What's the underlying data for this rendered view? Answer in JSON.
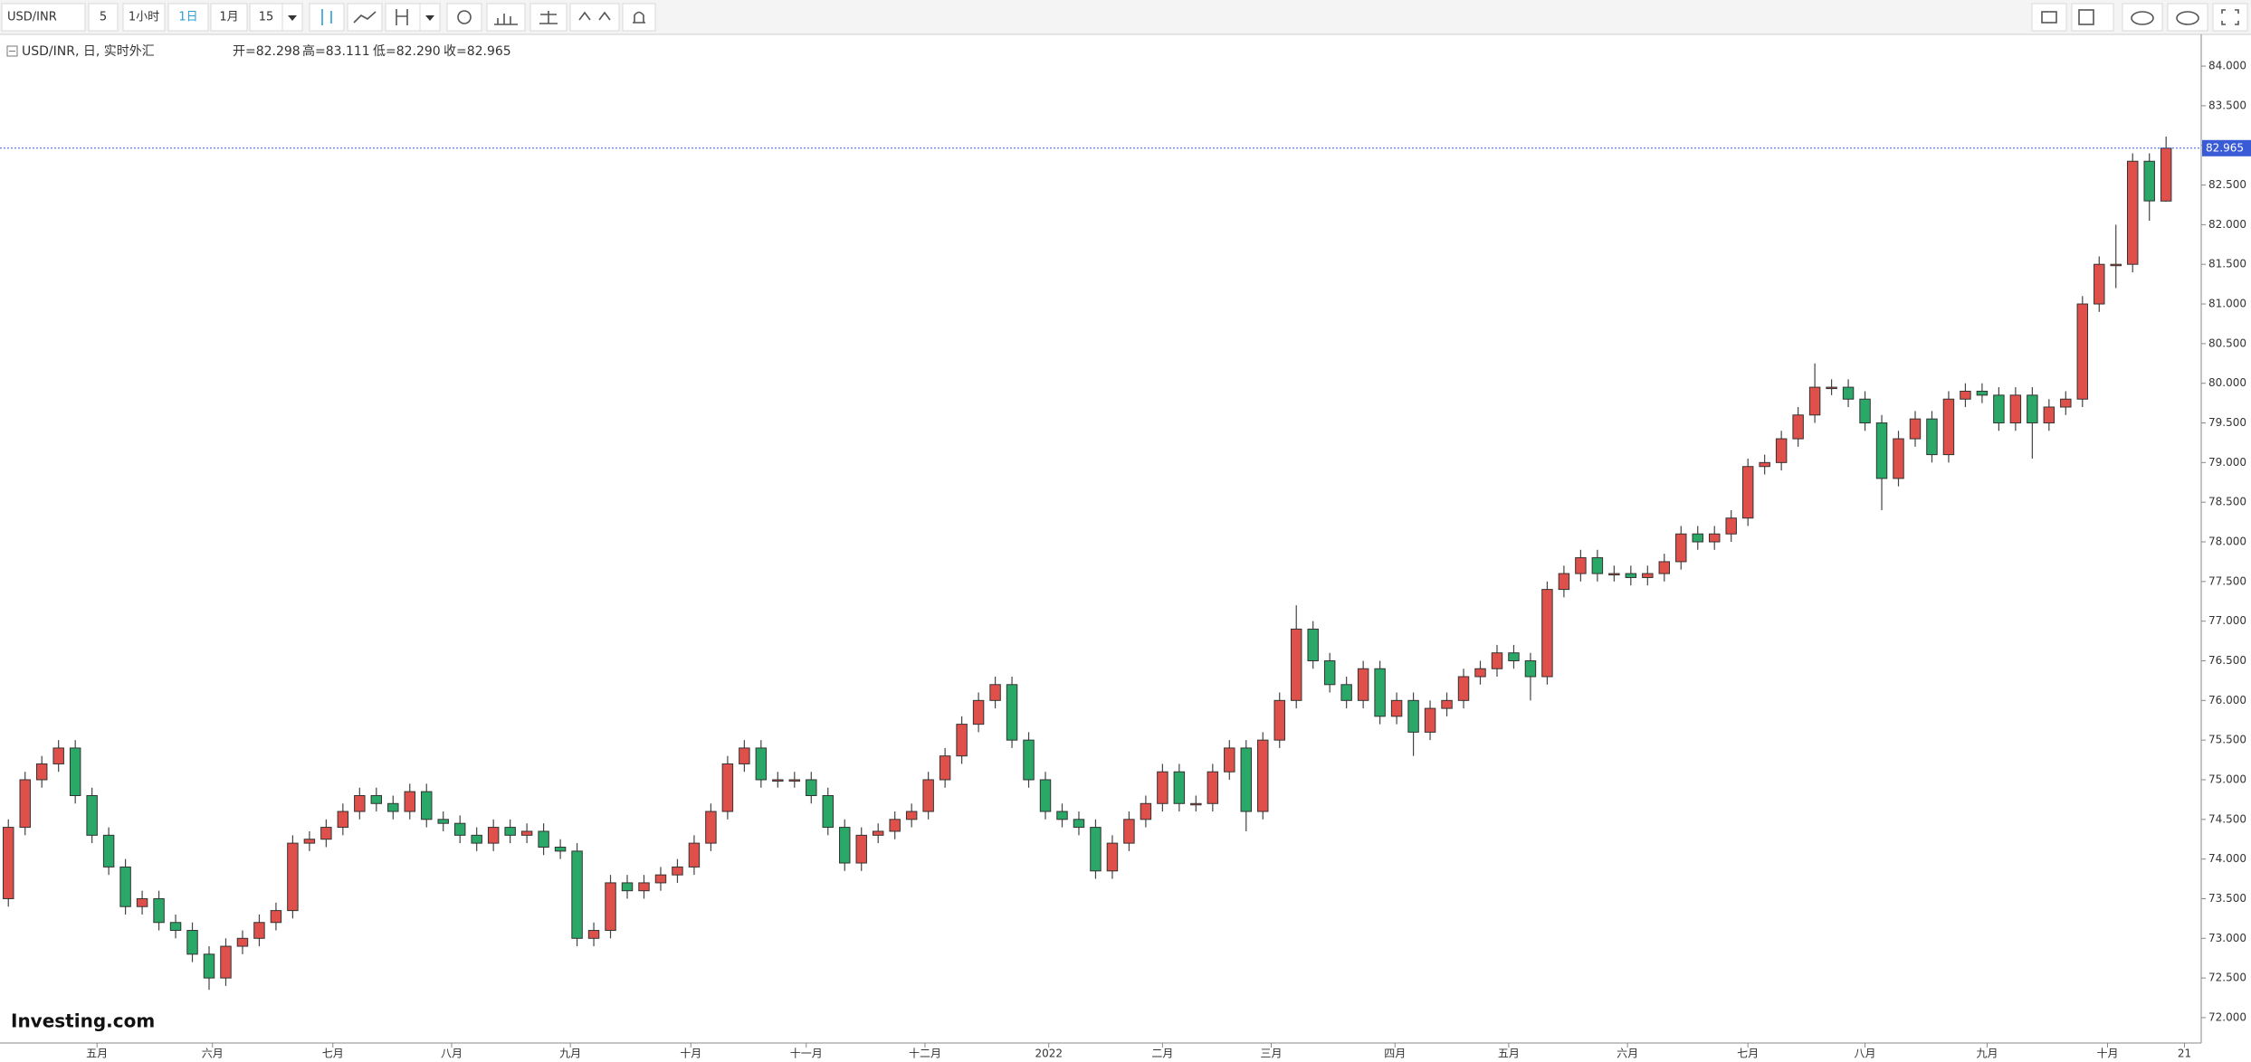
{
  "toolbar": {
    "symbol": "USD/INR",
    "quantity": "5",
    "buttons": [
      "1小时",
      "1日",
      "1月",
      "15"
    ]
  },
  "chart_data": {
    "type": "candlestick",
    "legend_title": "USD/INR, 日, 实时外汇",
    "legend_values": [
      "开=82.298",
      "高=83.111",
      "低=82.290",
      "收=82.965"
    ],
    "logo": "Investing.com",
    "up_color": "#e0504b",
    "down_color": "#2aa868",
    "open": [
      73.5,
      74.4,
      75.0,
      75.2,
      75.4,
      74.8,
      74.3,
      73.9,
      73.4,
      73.5,
      73.2,
      73.1,
      72.8,
      72.5,
      72.9,
      73.0,
      73.2,
      73.35,
      74.2,
      74.25,
      74.4,
      74.6,
      74.8,
      74.7,
      74.6,
      74.85,
      74.5,
      74.45,
      74.3,
      74.2,
      74.4,
      74.3,
      74.35,
      74.15,
      74.1,
      73.0,
      73.1,
      73.7,
      73.6,
      73.7,
      73.8,
      73.9,
      74.2,
      74.6,
      75.2,
      75.4,
      75.0,
      75.0,
      75.0,
      74.8,
      74.4,
      73.95,
      74.3,
      74.35,
      74.5,
      74.6,
      75.0,
      75.3,
      75.7,
      76.0,
      76.2,
      75.5,
      75.0,
      74.6,
      74.5,
      74.4,
      73.85,
      74.2,
      74.5,
      74.7,
      75.1,
      74.7,
      74.7,
      75.1,
      75.4,
      74.6,
      75.5,
      76.0,
      76.9,
      76.5,
      76.2,
      76.0,
      76.4,
      75.8,
      76.0,
      75.6,
      75.9,
      76.0,
      76.3,
      76.4,
      76.6,
      76.5,
      76.3,
      77.4,
      77.6,
      77.8,
      77.6,
      77.6,
      77.55,
      77.6,
      77.75,
      78.1,
      78.0,
      78.1,
      78.3,
      78.95,
      79.0,
      79.3,
      79.6,
      79.95,
      79.95,
      79.8,
      79.5,
      78.8,
      79.3,
      79.55,
      79.1,
      79.8,
      79.9,
      79.85,
      79.5,
      79.85,
      79.5,
      79.7,
      79.8,
      81.0,
      81.5,
      81.5,
      82.8,
      82.298
    ],
    "high": [
      74.5,
      75.1,
      75.3,
      75.5,
      75.5,
      74.9,
      74.4,
      74.0,
      73.6,
      73.6,
      73.3,
      73.2,
      72.9,
      73.0,
      73.1,
      73.3,
      73.45,
      74.3,
      74.35,
      74.5,
      74.7,
      74.9,
      74.9,
      74.8,
      74.95,
      74.95,
      74.6,
      74.55,
      74.4,
      74.5,
      74.5,
      74.45,
      74.45,
      74.25,
      74.2,
      73.2,
      73.8,
      73.8,
      73.8,
      73.9,
      74.0,
      74.3,
      74.7,
      75.3,
      75.5,
      75.5,
      75.1,
      75.1,
      75.1,
      74.9,
      74.5,
      74.4,
      74.45,
      74.6,
      74.7,
      75.1,
      75.4,
      75.8,
      76.1,
      76.3,
      76.3,
      75.6,
      75.1,
      74.7,
      74.6,
      74.5,
      74.3,
      74.6,
      74.8,
      75.2,
      75.2,
      74.8,
      75.2,
      75.5,
      75.5,
      75.6,
      76.1,
      77.2,
      77.0,
      76.6,
      76.3,
      76.5,
      76.5,
      76.1,
      76.1,
      76.0,
      76.1,
      76.4,
      76.5,
      76.7,
      76.7,
      76.6,
      77.5,
      77.7,
      77.9,
      77.9,
      77.7,
      77.7,
      77.7,
      77.85,
      78.2,
      78.2,
      78.2,
      78.4,
      79.05,
      79.1,
      79.4,
      79.7,
      80.25,
      80.05,
      80.05,
      79.9,
      79.6,
      79.4,
      79.65,
      79.65,
      79.9,
      80.0,
      80.0,
      79.95,
      79.95,
      79.95,
      79.8,
      79.9,
      81.1,
      81.6,
      82.0,
      82.9,
      82.9,
      83.111
    ],
    "low": [
      73.4,
      74.3,
      74.9,
      75.1,
      74.7,
      74.2,
      73.8,
      73.3,
      73.3,
      73.1,
      73.0,
      72.7,
      72.35,
      72.4,
      72.8,
      72.9,
      73.1,
      73.25,
      74.1,
      74.15,
      74.3,
      74.5,
      74.6,
      74.5,
      74.5,
      74.4,
      74.35,
      74.2,
      74.1,
      74.1,
      74.2,
      74.2,
      74.05,
      74.0,
      72.9,
      72.9,
      73.0,
      73.5,
      73.5,
      73.6,
      73.7,
      73.8,
      74.1,
      74.5,
      75.1,
      74.9,
      74.9,
      74.9,
      74.7,
      74.3,
      73.85,
      73.85,
      74.2,
      74.25,
      74.4,
      74.5,
      74.9,
      75.2,
      75.6,
      75.9,
      75.4,
      74.9,
      74.5,
      74.4,
      74.3,
      73.75,
      73.75,
      74.1,
      74.4,
      74.6,
      74.6,
      74.6,
      74.6,
      75.0,
      74.35,
      74.5,
      75.4,
      75.9,
      76.4,
      76.1,
      75.9,
      75.9,
      75.7,
      75.7,
      75.3,
      75.5,
      75.8,
      75.9,
      76.2,
      76.3,
      76.4,
      76.0,
      76.2,
      77.3,
      77.5,
      77.5,
      77.5,
      77.45,
      77.45,
      77.5,
      77.65,
      77.9,
      77.9,
      78.0,
      78.2,
      78.85,
      78.9,
      79.2,
      79.5,
      79.85,
      79.7,
      79.4,
      78.4,
      78.7,
      79.2,
      79.0,
      79.0,
      79.7,
      79.75,
      79.4,
      79.4,
      79.05,
      79.4,
      79.6,
      79.7,
      80.9,
      81.2,
      81.4,
      82.05,
      82.29
    ],
    "close": [
      74.4,
      75.0,
      75.2,
      75.4,
      74.8,
      74.3,
      73.9,
      73.4,
      73.5,
      73.2,
      73.1,
      72.8,
      72.5,
      72.9,
      73.0,
      73.2,
      73.35,
      74.2,
      74.25,
      74.4,
      74.6,
      74.8,
      74.7,
      74.6,
      74.85,
      74.5,
      74.45,
      74.3,
      74.2,
      74.4,
      74.3,
      74.35,
      74.15,
      74.1,
      73.0,
      73.1,
      73.7,
      73.6,
      73.7,
      73.8,
      73.9,
      74.2,
      74.6,
      75.2,
      75.4,
      75.0,
      75.0,
      75.0,
      74.8,
      74.4,
      73.95,
      74.3,
      74.35,
      74.5,
      74.6,
      75.0,
      75.3,
      75.7,
      76.0,
      76.2,
      75.5,
      75.0,
      74.6,
      74.5,
      74.4,
      73.85,
      74.2,
      74.5,
      74.7,
      75.1,
      74.7,
      74.7,
      75.1,
      75.4,
      74.6,
      75.5,
      76.0,
      76.9,
      76.5,
      76.2,
      76.0,
      76.4,
      75.8,
      76.0,
      75.6,
      75.9,
      76.0,
      76.3,
      76.4,
      76.6,
      76.5,
      76.3,
      77.4,
      77.6,
      77.8,
      77.6,
      77.6,
      77.55,
      77.6,
      77.75,
      78.1,
      78.0,
      78.1,
      78.3,
      78.95,
      79.0,
      79.3,
      79.6,
      79.95,
      79.95,
      79.8,
      79.5,
      78.8,
      79.3,
      79.55,
      79.1,
      79.8,
      79.9,
      79.85,
      79.5,
      79.85,
      79.5,
      79.7,
      79.8,
      81.0,
      81.5,
      81.5,
      82.8,
      82.3,
      82.965
    ],
    "xlim": [
      0,
      131.6
    ],
    "xticks": [
      {
        "value": 5.8,
        "label": "五月"
      },
      {
        "value": 12.7,
        "label": "六月"
      },
      {
        "value": 19.9,
        "label": "七月"
      },
      {
        "value": 27,
        "label": "八月"
      },
      {
        "value": 34.1,
        "label": "九月"
      },
      {
        "value": 41.3,
        "label": "十月"
      },
      {
        "value": 48.2,
        "label": "十一月"
      },
      {
        "value": 55.3,
        "label": "十二月"
      },
      {
        "value": 62.7,
        "label": "2022"
      },
      {
        "value": 69.5,
        "label": "二月"
      },
      {
        "value": 76,
        "label": "三月"
      },
      {
        "value": 83.4,
        "label": "四月"
      },
      {
        "value": 90.2,
        "label": "五月"
      },
      {
        "value": 97.3,
        "label": "六月"
      },
      {
        "value": 104.5,
        "label": "七月"
      },
      {
        "value": 111.5,
        "label": "八月"
      },
      {
        "value": 118.8,
        "label": "九月"
      },
      {
        "value": 126,
        "label": "十月"
      },
      {
        "value": 130.6,
        "label": "21"
      }
    ],
    "ylim": [
      71.68,
      84.4
    ],
    "yticks": [
      {
        "value": 72,
        "label": "72.000"
      },
      {
        "value": 72.5,
        "label": "72.500"
      },
      {
        "value": 73,
        "label": "73.000"
      },
      {
        "value": 73.5,
        "label": "73.500"
      },
      {
        "value": 74,
        "label": "74.000"
      },
      {
        "value": 74.5,
        "label": "74.500"
      },
      {
        "value": 75,
        "label": "75.000"
      },
      {
        "value": 75.5,
        "label": "75.500"
      },
      {
        "value": 76,
        "label": "76.000"
      },
      {
        "value": 76.5,
        "label": "76.500"
      },
      {
        "value": 77,
        "label": "77.000"
      },
      {
        "value": 77.5,
        "label": "77.500"
      },
      {
        "value": 78,
        "label": "78.000"
      },
      {
        "value": 78.5,
        "label": "78.500"
      },
      {
        "value": 79,
        "label": "79.000"
      },
      {
        "value": 79.5,
        "label": "79.500"
      },
      {
        "value": 80,
        "label": "80.000"
      },
      {
        "value": 80.5,
        "label": "80.500"
      },
      {
        "value": 81,
        "label": "81.000"
      },
      {
        "value": 81.5,
        "label": "81.500"
      },
      {
        "value": 82,
        "label": "82.000"
      },
      {
        "value": 82.5,
        "label": "82.500"
      },
      {
        "value": 83,
        "label": "83.000"
      },
      {
        "value": 83.5,
        "label": "83.500"
      },
      {
        "value": 84,
        "label": "84.000"
      }
    ],
    "grid": false
  }
}
